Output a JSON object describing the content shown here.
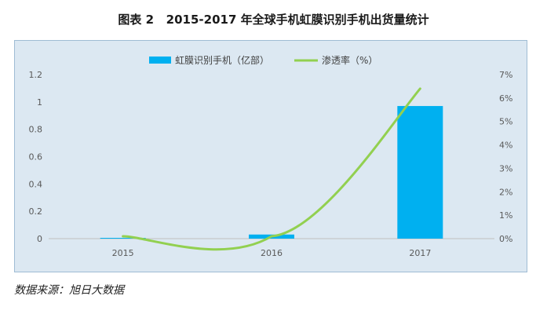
{
  "figure_title": "图表 2   2015-2017 年全球手机虹膜识别手机出货量统计",
  "source": "数据来源：旭日大数据",
  "colors": {
    "bar": "#00b0f0",
    "line": "#92d050",
    "axis_text": "#595959",
    "plot_bg": "#dce8f2"
  },
  "chart_data": {
    "type": "bar",
    "categories": [
      "2015",
      "2016",
      "2017"
    ],
    "series": [
      {
        "name": "虹膜识别手机（亿部）",
        "type": "bar",
        "axis": "left",
        "values": [
          0.005,
          0.03,
          0.97
        ]
      },
      {
        "name": "渗透率（%）",
        "type": "line",
        "axis": "right",
        "smooth": true,
        "values": [
          0.1,
          0.1,
          6.4
        ]
      }
    ],
    "y_left": {
      "ticks": [
        "0",
        "0.2",
        "0.4",
        "0.6",
        "0.8",
        "1",
        "1.2"
      ],
      "ylim": [
        0,
        1.2
      ]
    },
    "y_right": {
      "ticks": [
        "0%",
        "1%",
        "2%",
        "3%",
        "4%",
        "5%",
        "6%",
        "7%"
      ],
      "ylim": [
        0,
        7
      ]
    },
    "legend_position": "top",
    "grid": false
  }
}
